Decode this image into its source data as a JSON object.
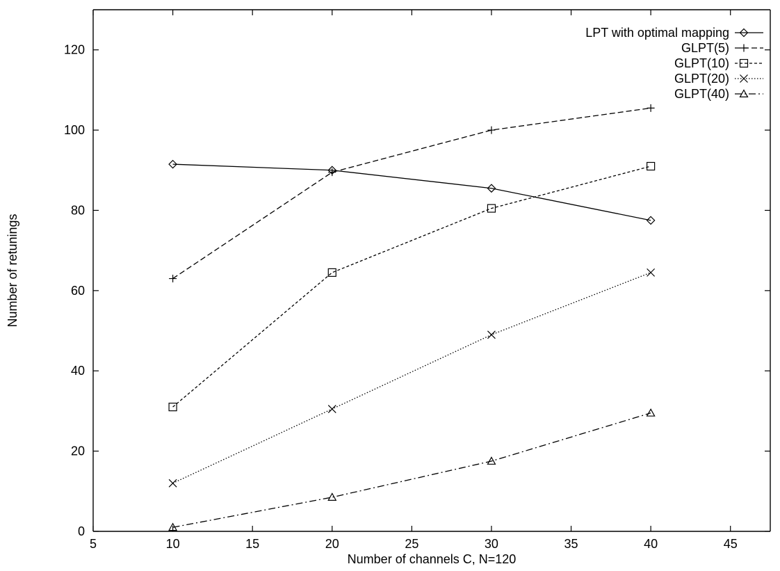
{
  "chart_data": {
    "type": "line",
    "xlabel": "Number of channels C, N=120",
    "ylabel": "Number of retunings",
    "xlim": [
      5,
      47.5
    ],
    "ylim": [
      0,
      130
    ],
    "xticks": [
      5,
      10,
      15,
      20,
      25,
      30,
      35,
      40,
      45
    ],
    "yticks": [
      0,
      20,
      40,
      60,
      80,
      100,
      120
    ],
    "grid": false,
    "legend_position": "top-right",
    "x": [
      10,
      20,
      30,
      40
    ],
    "series": [
      {
        "name": "LPT with optimal mapping",
        "marker": "diamond",
        "dash": "",
        "values": [
          91.5,
          90,
          85.5,
          77.5
        ]
      },
      {
        "name": "GLPT(5)",
        "marker": "plus",
        "dash": "8,4",
        "values": [
          63,
          89.5,
          100,
          105.5
        ]
      },
      {
        "name": "GLPT(10)",
        "marker": "square",
        "dash": "4,3",
        "values": [
          31,
          64.5,
          80.5,
          91
        ]
      },
      {
        "name": "GLPT(20)",
        "marker": "cross",
        "dash": "1.5,2.5",
        "values": [
          12,
          30.5,
          49,
          64.5
        ]
      },
      {
        "name": "GLPT(40)",
        "marker": "triangle",
        "dash": "10,4,2,4",
        "values": [
          1,
          8.5,
          17.5,
          29.5
        ]
      }
    ]
  }
}
